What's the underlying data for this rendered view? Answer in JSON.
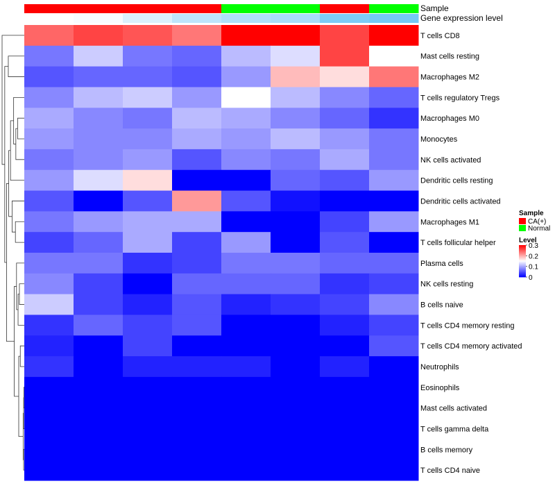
{
  "chart_data": {
    "type": "heatmap",
    "annotation_tracks": [
      {
        "label": "Sample",
        "values": [
          "CA(+)",
          "CA(+)",
          "CA(+)",
          "CA(+)",
          "Normal",
          "Normal",
          "CA(+)",
          "Normal"
        ],
        "colors": {
          "CA(+)": "#ff0000",
          "Normal": "#00ff00"
        }
      },
      {
        "label": "Gene expression level",
        "values": [
          0.0,
          0.05,
          0.25,
          0.45,
          0.55,
          0.6,
          0.9,
          0.95
        ],
        "gradient": [
          "#ffffff",
          "#6ec6f5"
        ]
      }
    ],
    "rows": [
      "T cells CD8",
      "Mast cells resting",
      "Macrophages M2",
      "T cells regulatory  Tregs",
      "Macrophages M0",
      "Monocytes",
      "NK cells activated",
      "Dendritic cells resting",
      "Dendritic cells activated",
      "Macrophages M1",
      "T cells follicular helper",
      "Plasma cells",
      "NK cells resting",
      "B cells naive",
      "T cells CD4 memory resting",
      "T cells CD4 memory activated",
      "Neutrophils",
      "Eosinophils",
      "Mast cells activated",
      "T cells gamma delta",
      "B cells memory",
      "T cells CD4 naive"
    ],
    "values": [
      [
        0.24,
        0.26,
        0.25,
        0.23,
        0.3,
        0.3,
        0.26,
        0.3
      ],
      [
        0.07,
        0.12,
        0.07,
        0.06,
        0.11,
        0.13,
        0.26,
        0.15
      ],
      [
        0.05,
        0.06,
        0.06,
        0.05,
        0.09,
        0.19,
        0.17,
        0.23
      ],
      [
        0.08,
        0.11,
        0.12,
        0.09,
        0.15,
        0.11,
        0.08,
        0.06
      ],
      [
        0.1,
        0.08,
        0.07,
        0.11,
        0.1,
        0.08,
        0.06,
        0.03
      ],
      [
        0.09,
        0.08,
        0.08,
        0.1,
        0.09,
        0.11,
        0.09,
        0.07
      ],
      [
        0.07,
        0.08,
        0.09,
        0.05,
        0.08,
        0.07,
        0.1,
        0.07
      ],
      [
        0.09,
        0.13,
        0.17,
        0.0,
        0.0,
        0.06,
        0.05,
        0.09
      ],
      [
        0.05,
        0.0,
        0.05,
        0.21,
        0.05,
        0.01,
        0.0,
        0.0
      ],
      [
        0.07,
        0.09,
        0.1,
        0.1,
        0.0,
        0.0,
        0.04,
        0.09
      ],
      [
        0.04,
        0.06,
        0.1,
        0.04,
        0.09,
        0.0,
        0.05,
        0.0
      ],
      [
        0.07,
        0.07,
        0.03,
        0.04,
        0.07,
        0.07,
        0.06,
        0.06
      ],
      [
        0.08,
        0.04,
        0.0,
        0.06,
        0.06,
        0.06,
        0.03,
        0.04
      ],
      [
        0.12,
        0.04,
        0.02,
        0.05,
        0.02,
        0.03,
        0.04,
        0.08
      ],
      [
        0.03,
        0.06,
        0.04,
        0.05,
        0.0,
        0.0,
        0.02,
        0.04
      ],
      [
        0.02,
        0.0,
        0.04,
        0.0,
        0.0,
        0.0,
        0.0,
        0.05
      ],
      [
        0.03,
        0.0,
        0.02,
        0.02,
        0.02,
        0.0,
        0.02,
        0.0
      ],
      [
        0.0,
        0.0,
        0.0,
        0.0,
        0.0,
        0.0,
        0.0,
        0.0
      ],
      [
        0.0,
        0.0,
        0.0,
        0.0,
        0.0,
        0.0,
        0.0,
        0.0
      ],
      [
        0.0,
        0.0,
        0.0,
        0.0,
        0.0,
        0.0,
        0.0,
        0.0
      ],
      [
        0.0,
        0.0,
        0.0,
        0.0,
        0.0,
        0.0,
        0.0,
        0.0
      ],
      [
        0.0,
        0.0,
        0.0,
        0.0,
        0.0,
        0.0,
        0.0,
        0.0
      ]
    ],
    "color_scale": {
      "min": 0,
      "mid": 0.15,
      "max": 0.3,
      "low": "#0000ff",
      "mid_color": "#ffffff",
      "high": "#ff0000"
    },
    "row_dendrogram": true,
    "legend": {
      "position": "right",
      "sample_title": "Sample",
      "sample_entries": [
        {
          "label": "CA(+)",
          "color": "#ff0000"
        },
        {
          "label": "Normal",
          "color": "#00ff00"
        }
      ],
      "level_title": "Level",
      "level_ticks": [
        {
          "label": "0.3",
          "value": 0.3
        },
        {
          "label": "0.2",
          "value": 0.2
        },
        {
          "label": "0.1",
          "value": 0.1
        },
        {
          "label": "0",
          "value": 0
        }
      ]
    }
  }
}
